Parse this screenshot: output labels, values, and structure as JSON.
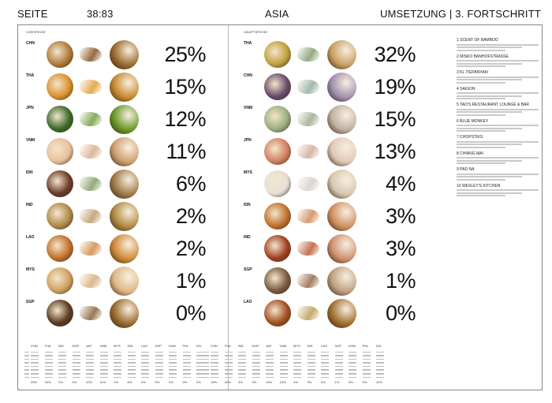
{
  "header": {
    "left": "SEITE",
    "page": "38:83",
    "center": "ASIA",
    "right": "UMSETZUNG | 3. FORTSCHRITT"
  },
  "sections": [
    {
      "title": "VORSPEISE",
      "rows": [
        {
          "country": "CHN",
          "pct": "25%",
          "main": "#b07a3a",
          "sec": "#8a5a2a",
          "circle": "#9a6a2e"
        },
        {
          "country": "THA",
          "pct": "15%",
          "main": "#d9902e",
          "sec": "#e0a23e",
          "circle": "#c98a30"
        },
        {
          "country": "JPN",
          "pct": "12%",
          "main": "#3a6a2a",
          "sec": "#7aa04a",
          "circle": "#6a9a2a"
        },
        {
          "country": "VNM",
          "pct": "11%",
          "main": "#e8c09a",
          "sec": "#d8b090",
          "circle": "#cfa070"
        },
        {
          "country": "IDN",
          "pct": "6%",
          "main": "#6a3a2a",
          "sec": "#8aa06a",
          "circle": "#a07a4a"
        },
        {
          "country": "IND",
          "pct": "2%",
          "main": "#b08a4a",
          "sec": "#c0a070",
          "circle": "#b08a40"
        },
        {
          "country": "LAO",
          "pct": "2%",
          "main": "#c0702a",
          "sec": "#d09050",
          "circle": "#d08a3a"
        },
        {
          "country": "MYS",
          "pct": "1%",
          "main": "#d0a060",
          "sec": "#d8b080",
          "circle": "#e0b888"
        },
        {
          "country": "SGP",
          "pct": "0%",
          "main": "#5a3a20",
          "sec": "#8a6a40",
          "circle": "#9a6a30"
        }
      ]
    },
    {
      "title": "HAUPTSPEISE",
      "rows": [
        {
          "country": "THA",
          "pct": "32%",
          "main": "#c0a040",
          "sec": "#8aa070",
          "circle": "#c8a060"
        },
        {
          "country": "CHN",
          "pct": "19%",
          "main": "#6a4a6a",
          "sec": "#9ab0a0",
          "circle": "#a090b0"
        },
        {
          "country": "VNM",
          "pct": "15%",
          "main": "#9ab080",
          "sec": "#a0b090",
          "circle": "#c0b0a0"
        },
        {
          "country": "JPN",
          "pct": "13%",
          "main": "#d08060",
          "sec": "#d0b0a0",
          "circle": "#e0c8b8"
        },
        {
          "country": "MYS",
          "pct": "4%",
          "main": "#e8e0d8",
          "sec": "#d8d0c8",
          "circle": "#d8c8b0"
        },
        {
          "country": "IDN",
          "pct": "3%",
          "main": "#c07030",
          "sec": "#d09060",
          "circle": "#d09060"
        },
        {
          "country": "IND",
          "pct": "3%",
          "main": "#a04020",
          "sec": "#c06040",
          "circle": "#d09070"
        },
        {
          "country": "SGP",
          "pct": "1%",
          "main": "#7a5a40",
          "sec": "#9a7050",
          "circle": "#c0a080"
        },
        {
          "country": "LAO",
          "pct": "0%",
          "main": "#a05020",
          "sec": "#c0a060",
          "circle": "#a07030"
        }
      ]
    }
  ],
  "legend": [
    {
      "title": "1 SCENT OF BAMBOO"
    },
    {
      "title": "2 MISKO BANHOFSTRASSE"
    },
    {
      "title": "3 KL ITEPANYAKI"
    },
    {
      "title": "4 SAIGON"
    },
    {
      "title": "5 TAO'S RESTAURANT LOUNGE & BAR"
    },
    {
      "title": "6 BLUE MONKEY"
    },
    {
      "title": "7 CHOPSTIKS"
    },
    {
      "title": "8 CHIANG MAI"
    },
    {
      "title": "9 PAD NA"
    },
    {
      "title": "10 WESLEY'S KITCHEN"
    }
  ],
  "table": {
    "columns": [
      "CHN",
      "THA",
      "IND",
      "KOR",
      "JAP",
      "VNM",
      "MYS",
      "IDN",
      "LAO",
      "SGP",
      "KHM",
      "PHL",
      "DIV"
    ],
    "left_totals": [
      "25%",
      "15%",
      "2%",
      "0%",
      "12%",
      "11%",
      "1%",
      "6%",
      "2%",
      "0%",
      "0%",
      "0%",
      "0%"
    ],
    "right_totals": [
      "19%",
      "32%",
      "3%",
      "0%",
      "13%",
      "15%",
      "4%",
      "3%",
      "0%",
      "1%",
      "0%",
      "0%",
      "11%"
    ]
  }
}
